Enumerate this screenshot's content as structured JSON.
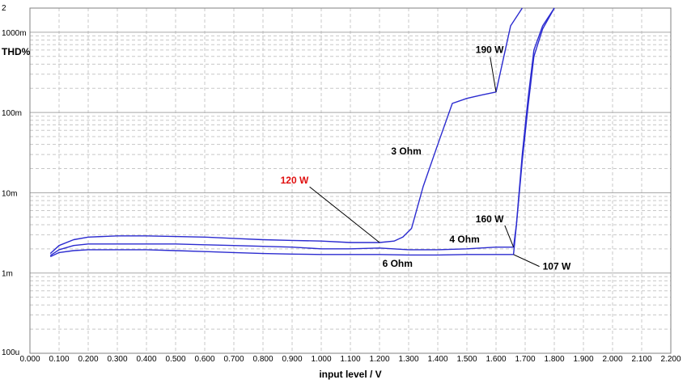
{
  "chart_data": {
    "type": "line",
    "ylabel": "THD%",
    "xlabel": "input level  /  V",
    "xlim": [
      0.0,
      2.2
    ],
    "ylim": [
      0.0001,
      2
    ],
    "yscale": "log",
    "grid": true,
    "x_ticks": [
      "0.000",
      "0.100",
      "0.200",
      "0.300",
      "0.400",
      "0.500",
      "0.600",
      "0.700",
      "0.800",
      "0.900",
      "1.000",
      "1.100",
      "1.200",
      "1.300",
      "1.400",
      "1.500",
      "1.600",
      "1.700",
      "1.800",
      "1.900",
      "2.000",
      "2.100",
      "2.200"
    ],
    "y_ticks": [
      {
        "value": 2,
        "label": "2"
      },
      {
        "value": 1,
        "label": "1000m"
      },
      {
        "value": 0.1,
        "label": "100m"
      },
      {
        "value": 0.01,
        "label": "10m"
      },
      {
        "value": 0.001,
        "label": "1m"
      },
      {
        "value": 0.0001,
        "label": "100u"
      }
    ],
    "series": [
      {
        "name": "3 Ohm",
        "color": "#2b2bd0",
        "points": [
          [
            0.07,
            0.00175
          ],
          [
            0.1,
            0.0022
          ],
          [
            0.15,
            0.0026
          ],
          [
            0.2,
            0.0028
          ],
          [
            0.3,
            0.0029
          ],
          [
            0.4,
            0.0029
          ],
          [
            0.5,
            0.00285
          ],
          [
            0.6,
            0.0028
          ],
          [
            0.7,
            0.0027
          ],
          [
            0.8,
            0.0026
          ],
          [
            0.9,
            0.00255
          ],
          [
            1.0,
            0.0025
          ],
          [
            1.1,
            0.0024
          ],
          [
            1.2,
            0.0024
          ],
          [
            1.25,
            0.0025
          ],
          [
            1.28,
            0.0028
          ],
          [
            1.31,
            0.0036
          ],
          [
            1.35,
            0.012
          ],
          [
            1.4,
            0.04
          ],
          [
            1.45,
            0.13
          ],
          [
            1.5,
            0.15
          ],
          [
            1.55,
            0.165
          ],
          [
            1.6,
            0.18
          ],
          [
            1.65,
            1.2
          ],
          [
            1.69,
            2.0
          ]
        ]
      },
      {
        "name": "4 Ohm",
        "color": "#2b2bd0",
        "points": [
          [
            0.07,
            0.00165
          ],
          [
            0.1,
            0.00195
          ],
          [
            0.15,
            0.0022
          ],
          [
            0.2,
            0.0023
          ],
          [
            0.3,
            0.0023
          ],
          [
            0.4,
            0.0023
          ],
          [
            0.5,
            0.0023
          ],
          [
            0.6,
            0.00225
          ],
          [
            0.7,
            0.0022
          ],
          [
            0.8,
            0.00215
          ],
          [
            0.9,
            0.0021
          ],
          [
            1.0,
            0.002
          ],
          [
            1.1,
            0.002
          ],
          [
            1.2,
            0.00205
          ],
          [
            1.3,
            0.00195
          ],
          [
            1.4,
            0.00195
          ],
          [
            1.5,
            0.002
          ],
          [
            1.6,
            0.0021
          ],
          [
            1.66,
            0.0021
          ],
          [
            1.67,
            0.004
          ],
          [
            1.69,
            0.03
          ],
          [
            1.71,
            0.15
          ],
          [
            1.73,
            0.6
          ],
          [
            1.76,
            1.2
          ],
          [
            1.8,
            2.0
          ]
        ]
      },
      {
        "name": "6 Ohm",
        "color": "#2b2bd0",
        "points": [
          [
            0.07,
            0.0016
          ],
          [
            0.1,
            0.0018
          ],
          [
            0.15,
            0.0019
          ],
          [
            0.2,
            0.00195
          ],
          [
            0.3,
            0.00195
          ],
          [
            0.4,
            0.00195
          ],
          [
            0.5,
            0.0019
          ],
          [
            0.6,
            0.00185
          ],
          [
            0.7,
            0.0018
          ],
          [
            0.8,
            0.00175
          ],
          [
            0.9,
            0.00172
          ],
          [
            1.0,
            0.0017
          ],
          [
            1.1,
            0.0017
          ],
          [
            1.2,
            0.0017
          ],
          [
            1.3,
            0.00168
          ],
          [
            1.4,
            0.00168
          ],
          [
            1.5,
            0.0017
          ],
          [
            1.6,
            0.0017
          ],
          [
            1.66,
            0.0017
          ],
          [
            1.67,
            0.004
          ],
          [
            1.69,
            0.025
          ],
          [
            1.71,
            0.12
          ],
          [
            1.73,
            0.5
          ],
          [
            1.76,
            1.1
          ],
          [
            1.8,
            2.0
          ]
        ]
      }
    ],
    "annotations": [
      {
        "text": "190 W",
        "color": "#000000",
        "text_at": [
          1.53,
          0.55
        ],
        "arrow_to": [
          1.6,
          0.18
        ]
      },
      {
        "text": "3 Ohm",
        "color": "#000000",
        "text_at": [
          1.24,
          0.03
        ],
        "arrow_to": null
      },
      {
        "text": "120 W",
        "color": "#e01010",
        "text_at": [
          0.86,
          0.013
        ],
        "arrow_to": [
          1.2,
          0.0024
        ]
      },
      {
        "text": "160 W",
        "color": "#000000",
        "text_at": [
          1.53,
          0.0043
        ],
        "arrow_to": [
          1.66,
          0.0021
        ]
      },
      {
        "text": "4 Ohm",
        "color": "#000000",
        "text_at": [
          1.44,
          0.0024
        ],
        "arrow_to": null
      },
      {
        "text": "6 Ohm",
        "color": "#000000",
        "text_at": [
          1.21,
          0.0012
        ],
        "arrow_to": null
      },
      {
        "text": "107  W",
        "color": "#000000",
        "text_at": [
          1.76,
          0.0011
        ],
        "arrow_to": [
          1.66,
          0.0017
        ]
      }
    ]
  }
}
